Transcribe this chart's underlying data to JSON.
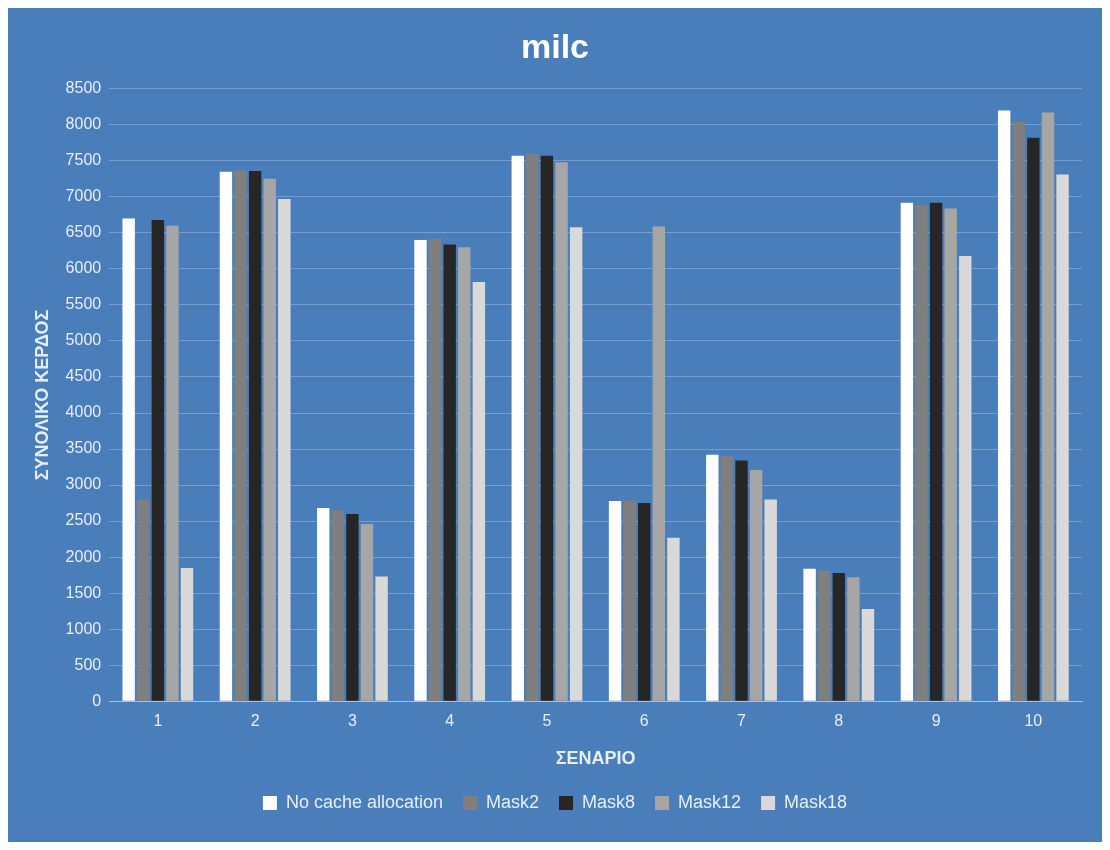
{
  "chart_data": {
    "type": "bar",
    "title": "milc",
    "xlabel": "ΣΕΝΑΡΙΟ",
    "ylabel": "ΣΥΝΟΛΙΚΟ ΚΕΡΔΟΣ",
    "categories": [
      "1",
      "2",
      "3",
      "4",
      "5",
      "6",
      "7",
      "8",
      "9",
      "10"
    ],
    "series": [
      {
        "name": "No cache allocation",
        "color": "#ffffff",
        "values": [
          6700,
          7350,
          2680,
          6400,
          7570,
          2780,
          3420,
          1840,
          6920,
          8200
        ]
      },
      {
        "name": "Mask2",
        "color": "#7f7f7f",
        "values": [
          2800,
          7370,
          2650,
          6420,
          7600,
          2790,
          3400,
          1810,
          6890,
          8040
        ]
      },
      {
        "name": "Mask8",
        "color": "#262626",
        "values": [
          6680,
          7360,
          2600,
          6340,
          7570,
          2750,
          3340,
          1780,
          6920,
          7820
        ]
      },
      {
        "name": "Mask12",
        "color": "#a6a6a6",
        "values": [
          6600,
          7250,
          2460,
          6300,
          7480,
          6590,
          3210,
          1720,
          6840,
          8170
        ]
      },
      {
        "name": "Mask18",
        "color": "#d9d9d9",
        "values": [
          1850,
          6970,
          1730,
          5820,
          6580,
          2270,
          2800,
          1280,
          6180,
          7310
        ]
      }
    ],
    "ylim": [
      0,
      8500
    ],
    "yticks": [
      0,
      500,
      1000,
      1500,
      2000,
      2500,
      3000,
      3500,
      4000,
      4500,
      5000,
      5500,
      6000,
      6500,
      7000,
      7500,
      8000,
      8500
    ],
    "grid": "y",
    "legend": "bottom"
  }
}
